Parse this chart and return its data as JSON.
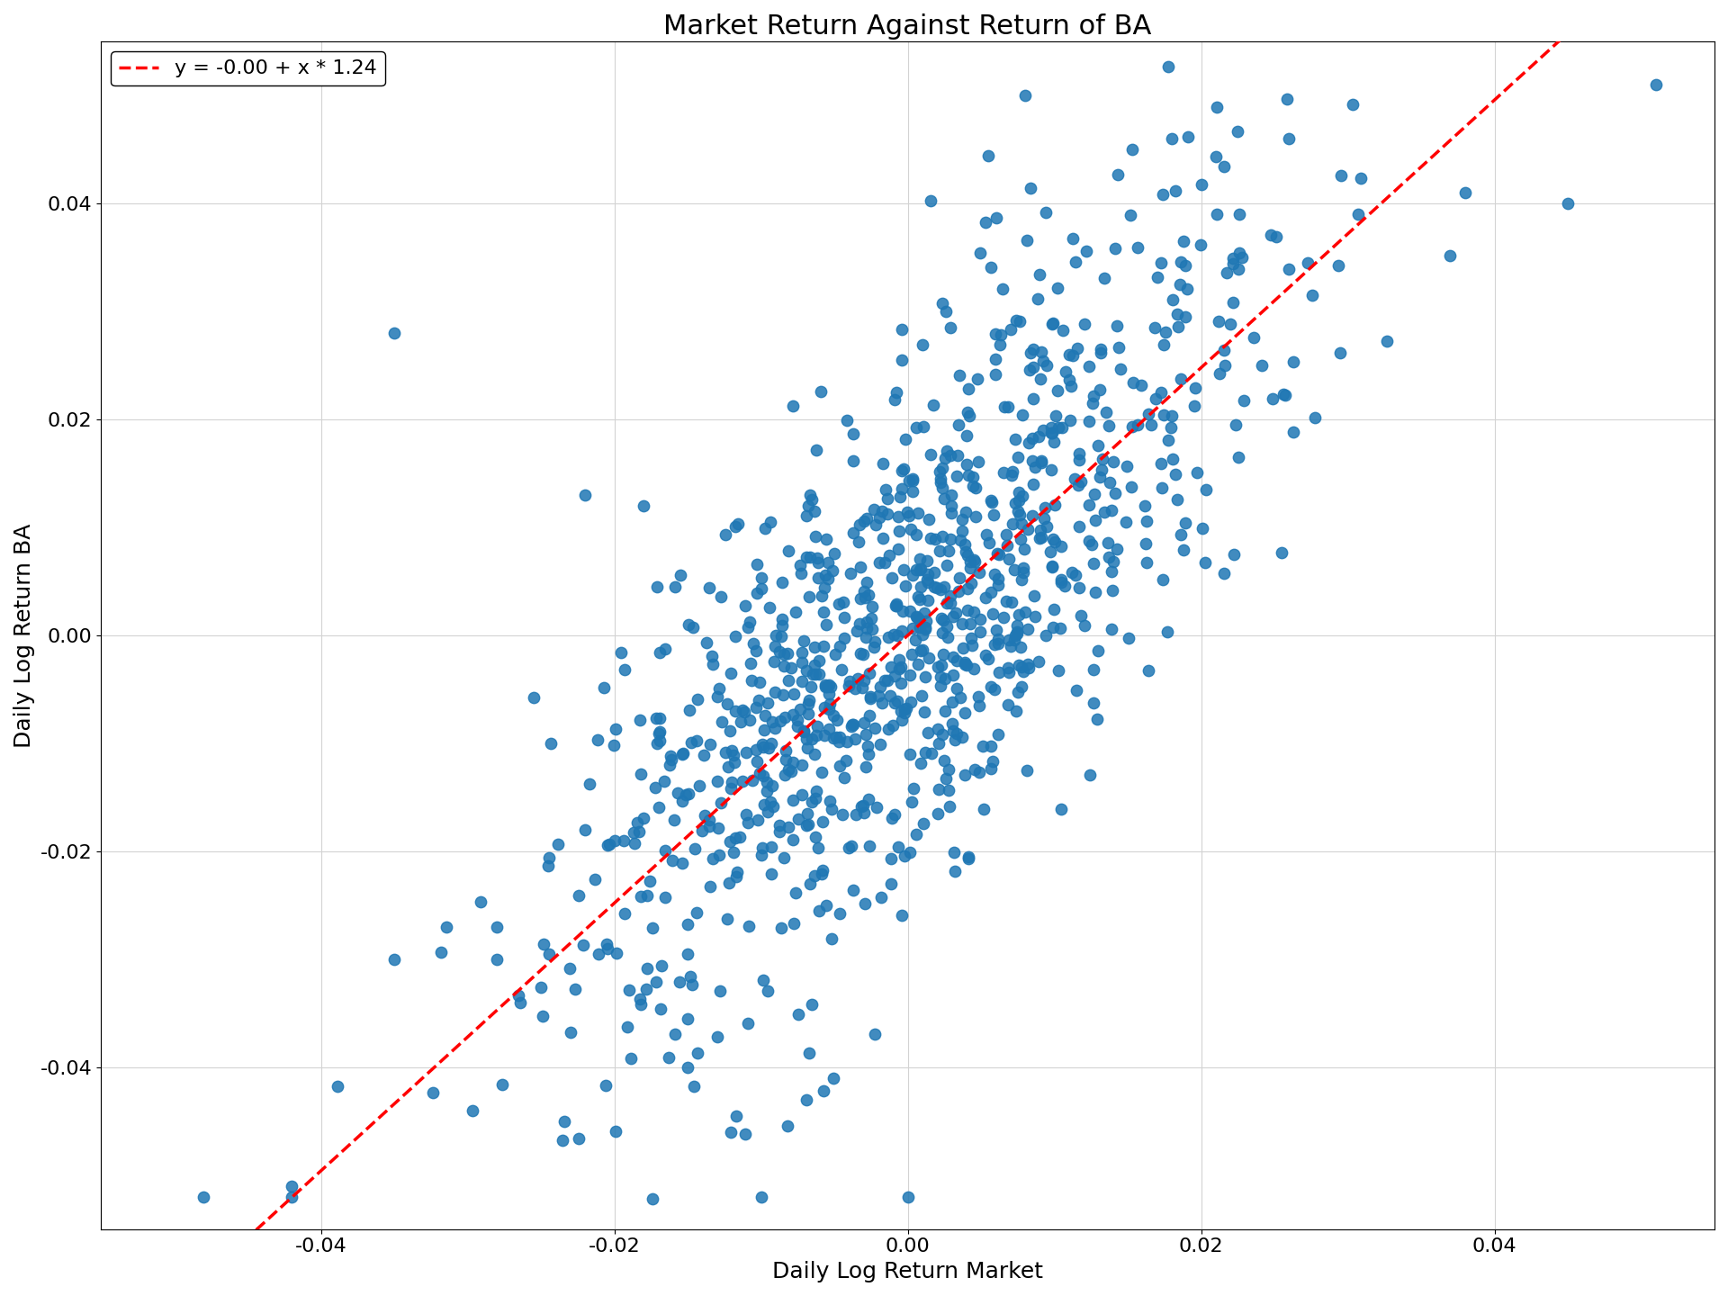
{
  "title": "Market Return Against Return of BA",
  "xlabel": "Daily Log Return Market",
  "ylabel": "Daily Log Return BA",
  "intercept": -0.0,
  "slope": 1.24,
  "legend_label": "y = -0.00 + x * 1.24",
  "dot_color": "#1f77b4",
  "line_color": "#ff0000",
  "xlim": [
    -0.055,
    0.055
  ],
  "ylim": [
    -0.055,
    0.055
  ],
  "xticks": [
    -0.04,
    -0.02,
    0.0,
    0.02,
    0.04
  ],
  "yticks": [
    -0.04,
    -0.02,
    0.0,
    0.02,
    0.04
  ],
  "n_points": 1000,
  "seed": 42,
  "market_std": 0.012,
  "noise_std": 0.012,
  "dot_size": 80,
  "dot_alpha": 0.85,
  "title_fontsize": 22,
  "label_fontsize": 18,
  "tick_fontsize": 16,
  "legend_fontsize": 16,
  "figwidth": 19.2,
  "figheight": 14.4,
  "dpi": 100
}
